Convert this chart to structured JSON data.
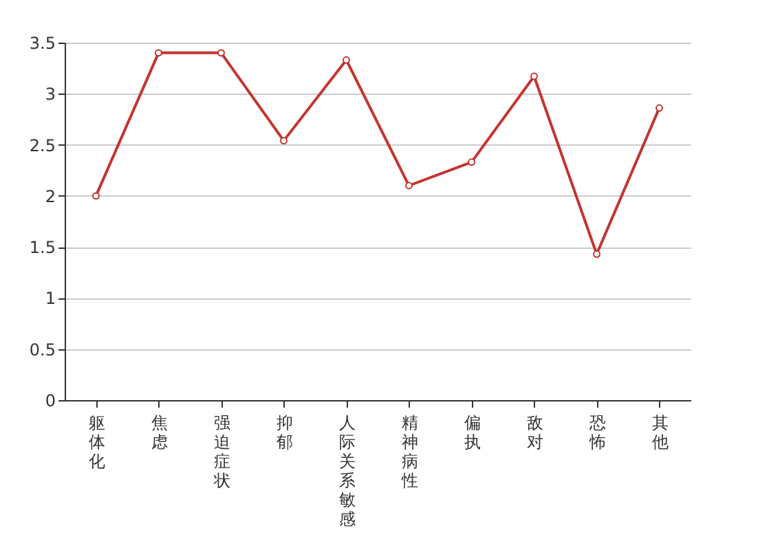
{
  "chart_data": {
    "type": "line",
    "categories": [
      "躯体化",
      "焦虑",
      "强迫症状",
      "抑郁",
      "人际关系敏感",
      "精神病性",
      "偏执",
      "敌对",
      "恐怖",
      "其他"
    ],
    "series": [
      {
        "color": "#c23531",
        "values": [
          2.0,
          3.4,
          3.4,
          2.54,
          3.33,
          2.1,
          2.33,
          3.17,
          1.43,
          2.86
        ]
      }
    ],
    "ylim": [
      0,
      3.5
    ],
    "yticks": [
      0,
      0.5,
      1,
      1.5,
      2,
      2.5,
      3,
      3.5
    ],
    "grid": "y",
    "marker": "circle",
    "line_style": "solid",
    "legend": false
  }
}
